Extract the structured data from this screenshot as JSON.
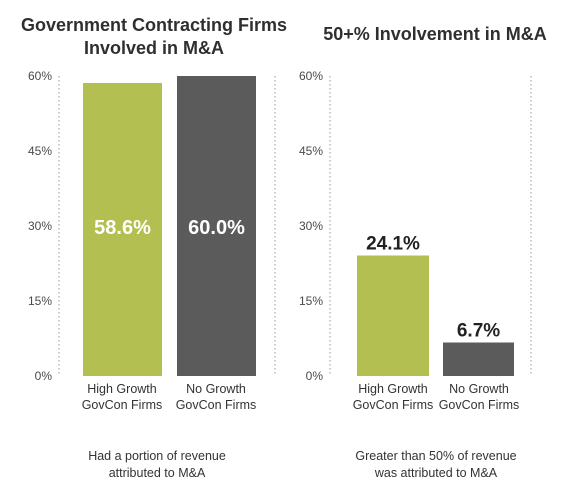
{
  "chart_data": [
    {
      "type": "bar",
      "title_lines": [
        "Government Contracting Firms",
        "Involved in M&A"
      ],
      "categories": [
        [
          "High Growth",
          "GovCon Firms"
        ],
        [
          "No Growth",
          "GovCon Firms"
        ]
      ],
      "values": [
        58.6,
        60.0
      ],
      "value_labels": [
        "58.6%",
        "60.0%"
      ],
      "yticks": [
        "0%",
        "15%",
        "30%",
        "45%",
        "60%"
      ],
      "ylim": [
        0,
        60
      ],
      "note_lines": [
        "Had a portion of revenue",
        "attributed to M&A"
      ],
      "colors": [
        "#b3bf50",
        "#5b5b5b"
      ],
      "label_position": "inside",
      "grid": false,
      "legend": "none"
    },
    {
      "type": "bar",
      "title_lines": [
        "50+% Involvement in M&A"
      ],
      "categories": [
        [
          "High Growth",
          "GovCon Firms"
        ],
        [
          "No Growth",
          "GovCon Firms"
        ]
      ],
      "values": [
        24.1,
        6.7
      ],
      "value_labels": [
        "24.1%",
        "6.7%"
      ],
      "yticks": [
        "0%",
        "15%",
        "30%",
        "45%",
        "60%"
      ],
      "ylim": [
        0,
        60
      ],
      "note_lines": [
        "Greater than 50% of revenue",
        "was attributed to M&A"
      ],
      "colors": [
        "#b3bf50",
        "#5b5b5b"
      ],
      "label_position": "above",
      "grid": false,
      "legend": "none"
    }
  ]
}
